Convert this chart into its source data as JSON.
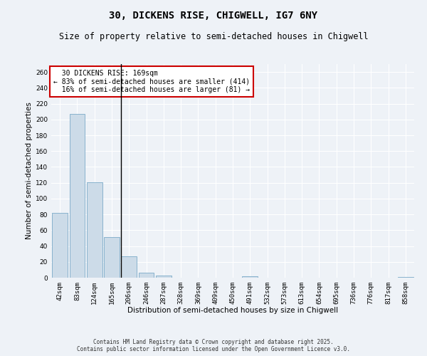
{
  "title": "30, DICKENS RISE, CHIGWELL, IG7 6NY",
  "subtitle": "Size of property relative to semi-detached houses in Chigwell",
  "xlabel": "Distribution of semi-detached houses by size in Chigwell",
  "ylabel": "Number of semi-detached properties",
  "categories": [
    "42sqm",
    "83sqm",
    "124sqm",
    "165sqm",
    "206sqm",
    "246sqm",
    "287sqm",
    "328sqm",
    "369sqm",
    "409sqm",
    "450sqm",
    "491sqm",
    "532sqm",
    "573sqm",
    "613sqm",
    "654sqm",
    "695sqm",
    "736sqm",
    "776sqm",
    "817sqm",
    "858sqm"
  ],
  "values": [
    82,
    207,
    121,
    51,
    27,
    6,
    3,
    0,
    0,
    0,
    0,
    2,
    0,
    0,
    0,
    0,
    0,
    0,
    0,
    0,
    1
  ],
  "bar_color": "#ccdbe8",
  "bar_edge_color": "#7aaac8",
  "bg_color": "#eef2f7",
  "grid_color": "#ffffff",
  "annotation_text": "  30 DICKENS RISE: 169sqm\n← 83% of semi-detached houses are smaller (414)\n  16% of semi-detached houses are larger (81) →",
  "annotation_box_color": "#ffffff",
  "annotation_box_edge": "#cc0000",
  "vline_x": 3.55,
  "ylim": [
    0,
    270
  ],
  "yticks": [
    0,
    20,
    40,
    60,
    80,
    100,
    120,
    140,
    160,
    180,
    200,
    220,
    240,
    260
  ],
  "footer": "Contains HM Land Registry data © Crown copyright and database right 2025.\nContains public sector information licensed under the Open Government Licence v3.0.",
  "title_fontsize": 10,
  "subtitle_fontsize": 8.5,
  "axis_label_fontsize": 7.5,
  "tick_fontsize": 6.5,
  "annotation_fontsize": 7,
  "footer_fontsize": 5.5
}
